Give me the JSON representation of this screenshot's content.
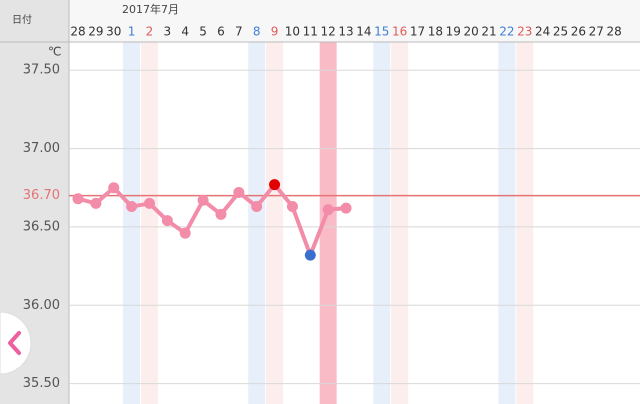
{
  "header": {
    "date_label": "日付"
  },
  "chart_data": {
    "type": "line",
    "title": "2017年7月",
    "y_unit": "℃",
    "categories": [
      "28",
      "29",
      "30",
      "1",
      "2",
      "3",
      "4",
      "5",
      "6",
      "7",
      "8",
      "9",
      "10",
      "11",
      "12",
      "13",
      "14",
      "15",
      "16",
      "17",
      "18",
      "19",
      "20",
      "21",
      "22",
      "23",
      "24",
      "25",
      "26",
      "27",
      "28"
    ],
    "category_colors": [
      null,
      null,
      null,
      "#3f7fd6",
      "#e05a5a",
      null,
      null,
      null,
      null,
      null,
      "#3f7fd6",
      "#e05a5a",
      null,
      null,
      null,
      null,
      null,
      "#3f7fd6",
      "#e05a5a",
      null,
      null,
      null,
      null,
      null,
      "#3f7fd6",
      "#e05a5a",
      null,
      null,
      null,
      null,
      null
    ],
    "band_colors": [
      null,
      null,
      null,
      "#e6effa",
      "#fdeeee",
      null,
      null,
      null,
      null,
      null,
      "#e6effa",
      "#fdeeee",
      null,
      null,
      "#f9bcc6",
      null,
      null,
      "#e6effa",
      "#fdeeee",
      null,
      null,
      null,
      null,
      null,
      "#e6effa",
      "#fdeeee",
      null,
      null,
      null,
      null,
      null
    ],
    "values": [
      36.68,
      36.65,
      36.75,
      36.63,
      36.65,
      36.54,
      36.46,
      36.67,
      36.58,
      36.72,
      36.63,
      36.77,
      36.63,
      36.32,
      36.61,
      36.62,
      null,
      null,
      null,
      null,
      null,
      null,
      null,
      null,
      null,
      null,
      null,
      null,
      null,
      null,
      null
    ],
    "color": "#f28ca8",
    "point_colors": [
      null,
      null,
      null,
      null,
      null,
      null,
      null,
      null,
      null,
      null,
      null,
      "#e00000",
      null,
      "#3a6fd0",
      null,
      null,
      null,
      null,
      null,
      null,
      null,
      null,
      null,
      null,
      null,
      null,
      null,
      null,
      null,
      null,
      null
    ],
    "ylim": [
      35.37,
      37.68
    ],
    "yticks": [
      {
        "value": 37.5,
        "label": "37.50"
      },
      {
        "value": 37,
        "label": "37.00"
      },
      {
        "value": 36.5,
        "label": "36.50"
      },
      {
        "value": 36,
        "label": "36.00"
      },
      {
        "value": 35.5,
        "label": "35.50"
      }
    ],
    "grid": true,
    "reference_line": {
      "value": 36.7,
      "label": "36.70",
      "color": "#e57373"
    }
  }
}
